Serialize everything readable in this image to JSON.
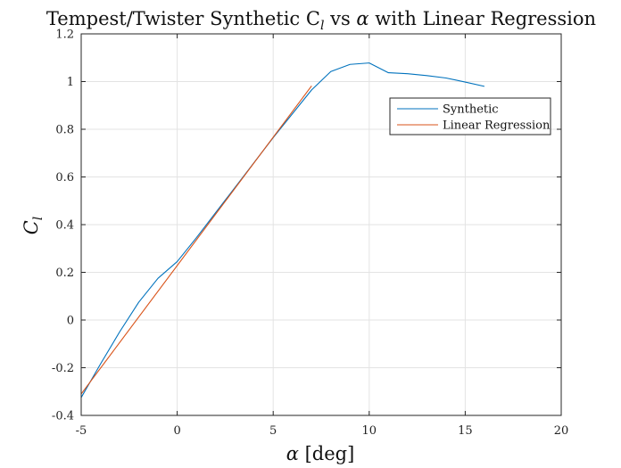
{
  "chart_data": {
    "type": "line",
    "title": "Tempest/Twister Synthetic C",
    "title_sub": "l",
    "title_mid": " vs ",
    "title_alpha": "α",
    "title_end": " with Linear Regression",
    "xlabel_symbol": "α",
    "xlabel_unit": " [deg]",
    "ylabel_symbol": "C",
    "ylabel_sub": "l",
    "xlim": [
      -5,
      20
    ],
    "ylim": [
      -0.4,
      1.2
    ],
    "xticks": [
      -5,
      0,
      5,
      10,
      15,
      20
    ],
    "yticks": [
      -0.4,
      -0.2,
      0,
      0.2,
      0.4,
      0.6,
      0.8,
      1,
      1.2
    ],
    "xtick_labels": [
      "-5",
      "0",
      "5",
      "10",
      "15",
      "20"
    ],
    "ytick_labels": [
      "-0.4",
      "-0.2",
      "0",
      "0.2",
      "0.4",
      "0.6",
      "0.8",
      "1",
      "1.2"
    ],
    "grid": true,
    "legend_position": "top-right",
    "series": [
      {
        "name": "Synthetic",
        "color": "#0072BD",
        "x": [
          -5,
          -4,
          -3,
          -2,
          -1,
          0,
          1,
          2,
          3,
          4,
          5,
          6,
          7,
          8,
          9,
          10,
          11,
          12,
          13,
          14,
          15,
          16
        ],
        "y": [
          -0.325,
          -0.185,
          -0.05,
          0.075,
          0.175,
          0.245,
          0.345,
          0.45,
          0.555,
          0.66,
          0.765,
          0.865,
          0.965,
          1.042,
          1.072,
          1.078,
          1.037,
          1.033,
          1.025,
          1.015,
          0.998,
          0.98
        ]
      },
      {
        "name": "Linear Regression",
        "color": "#D95319",
        "x": [
          -5,
          7
        ],
        "y": [
          -0.31,
          0.982
        ]
      }
    ]
  }
}
